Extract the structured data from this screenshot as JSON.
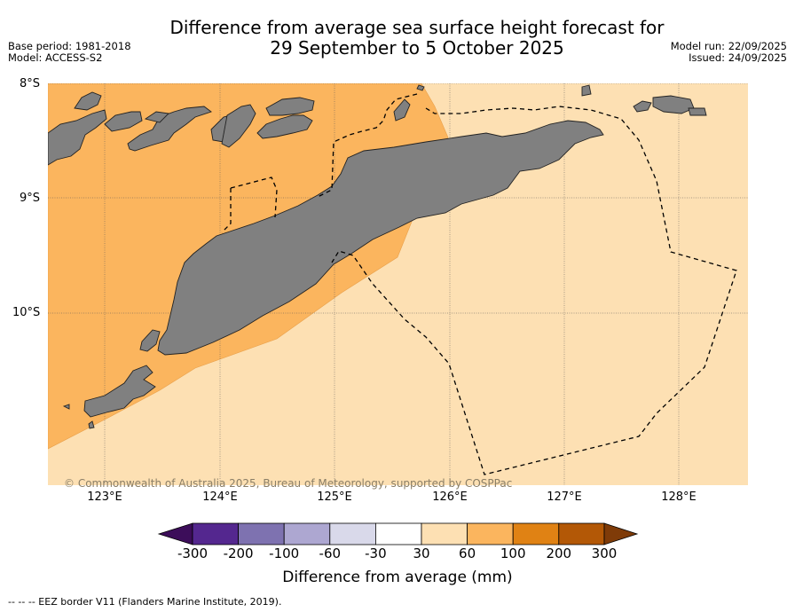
{
  "title": {
    "line1": "Difference from average sea surface height forecast for",
    "line2": "29 September to 5 October 2025"
  },
  "meta": {
    "base_period": "Base period: 1981-2018",
    "model": "Model: ACCESS-S2",
    "model_run": "Model run: 22/09/2025",
    "issued": "Issued: 24/09/2025"
  },
  "map": {
    "region": "Timor and surrounding islands",
    "lat_labels": [
      "8°S",
      "9°S",
      "10°S"
    ],
    "lon_labels": [
      "123°E",
      "124°E",
      "125°E",
      "126°E",
      "127°E",
      "128°E"
    ],
    "copyright": "© Commonwealth of Australia 2025, Bureau of Meteorology, supported by COSPPac",
    "land_color": "#808080",
    "anomaly_colors": {
      "30_to_60": "#fde0b3",
      "60_to_100": "#fbb55e"
    }
  },
  "colorbar": {
    "ticks": [
      "-300",
      "-200",
      "-100",
      "-60",
      "-30",
      "30",
      "60",
      "100",
      "200",
      "300"
    ],
    "colors": [
      "#3c0d5a",
      "#54278f",
      "#7e72b0",
      "#ada7d1",
      "#d9d9ea",
      "#ffffff",
      "#fde0b3",
      "#fbb55e",
      "#e08214",
      "#b35806",
      "#7f3b08"
    ],
    "title": "Difference from average (mm)"
  },
  "footnote": "--  --  -- EEZ border V11 (Flanders Marine Institute, 2019)."
}
